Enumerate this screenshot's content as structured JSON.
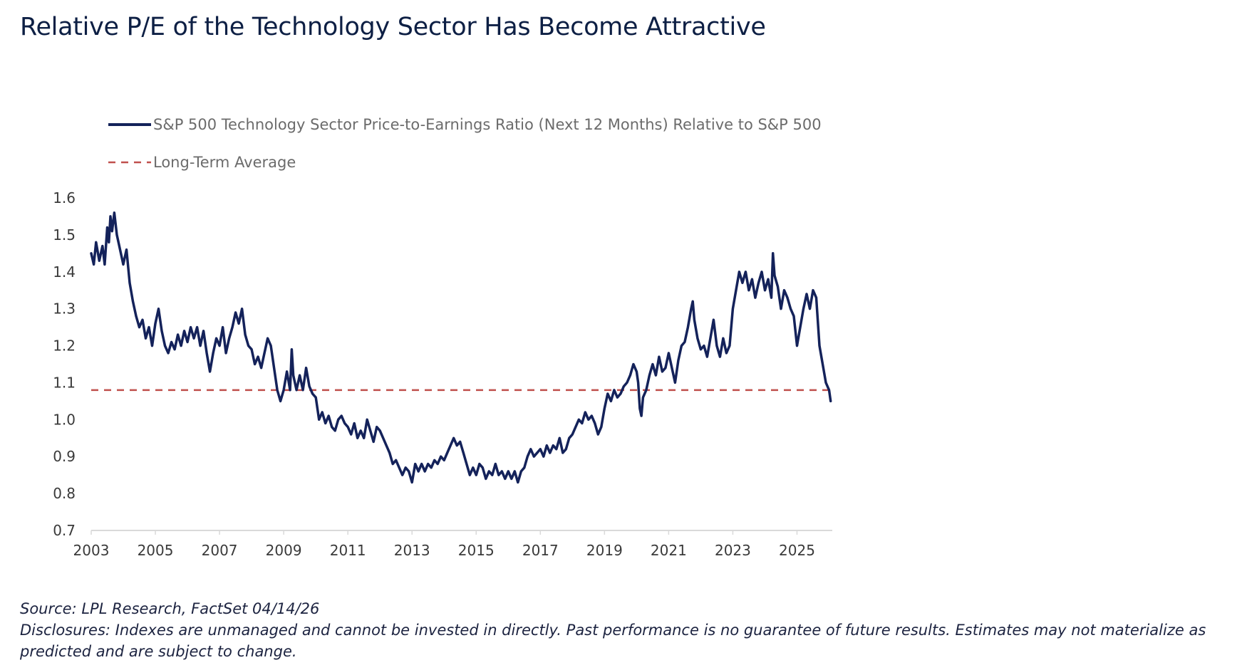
{
  "title": "Relative P/E of the Technology Sector Has Become Attractive",
  "source": "Source: LPL Research, FactSet 04/14/26",
  "disclosures": "Disclosures: Indexes are unmanaged and cannot be invested in directly. Past performance is no guarantee of future results. Estimates may not materialize as predicted and are subject to change.",
  "colors": {
    "series": "#14225a",
    "average": "#c0504d",
    "title": "#0d1f44",
    "axis": "#d9d9d9"
  },
  "chart_data": {
    "type": "line",
    "title": "Relative P/E of the Technology Sector Has Become Attractive",
    "xlabel": "",
    "ylabel": "",
    "xlim": [
      2003,
      2026.1
    ],
    "ylim": [
      0.7,
      1.6
    ],
    "x_ticks": [
      "2003",
      "2005",
      "2007",
      "2009",
      "2011",
      "2013",
      "2015",
      "2017",
      "2019",
      "2021",
      "2023",
      "2025"
    ],
    "y_ticks": [
      "1.6",
      "1.5",
      "1.4",
      "1.3",
      "1.2",
      "1.1",
      "1.0",
      "0.9",
      "0.8",
      "0.7"
    ],
    "grid": false,
    "legend_position": "top-left",
    "series": [
      {
        "name": "S&P 500 Technology Sector Price-to-Earnings Ratio (Next 12 Months) Relative to S&P 500",
        "style": "solid",
        "points": [
          [
            2003.0,
            1.45
          ],
          [
            2003.08,
            1.42
          ],
          [
            2003.15,
            1.48
          ],
          [
            2003.25,
            1.43
          ],
          [
            2003.35,
            1.47
          ],
          [
            2003.42,
            1.42
          ],
          [
            2003.5,
            1.52
          ],
          [
            2003.55,
            1.48
          ],
          [
            2003.6,
            1.55
          ],
          [
            2003.65,
            1.51
          ],
          [
            2003.72,
            1.56
          ],
          [
            2003.8,
            1.5
          ],
          [
            2003.9,
            1.46
          ],
          [
            2004.0,
            1.42
          ],
          [
            2004.1,
            1.46
          ],
          [
            2004.2,
            1.37
          ],
          [
            2004.3,
            1.32
          ],
          [
            2004.4,
            1.28
          ],
          [
            2004.5,
            1.25
          ],
          [
            2004.6,
            1.27
          ],
          [
            2004.7,
            1.22
          ],
          [
            2004.8,
            1.25
          ],
          [
            2004.9,
            1.2
          ],
          [
            2005.0,
            1.26
          ],
          [
            2005.1,
            1.3
          ],
          [
            2005.2,
            1.24
          ],
          [
            2005.3,
            1.2
          ],
          [
            2005.4,
            1.18
          ],
          [
            2005.5,
            1.21
          ],
          [
            2005.6,
            1.19
          ],
          [
            2005.7,
            1.23
          ],
          [
            2005.8,
            1.2
          ],
          [
            2005.9,
            1.24
          ],
          [
            2006.0,
            1.21
          ],
          [
            2006.1,
            1.25
          ],
          [
            2006.2,
            1.22
          ],
          [
            2006.3,
            1.25
          ],
          [
            2006.4,
            1.2
          ],
          [
            2006.5,
            1.24
          ],
          [
            2006.6,
            1.18
          ],
          [
            2006.7,
            1.13
          ],
          [
            2006.8,
            1.18
          ],
          [
            2006.9,
            1.22
          ],
          [
            2007.0,
            1.2
          ],
          [
            2007.1,
            1.25
          ],
          [
            2007.2,
            1.18
          ],
          [
            2007.3,
            1.22
          ],
          [
            2007.4,
            1.25
          ],
          [
            2007.5,
            1.29
          ],
          [
            2007.6,
            1.26
          ],
          [
            2007.7,
            1.3
          ],
          [
            2007.8,
            1.23
          ],
          [
            2007.9,
            1.2
          ],
          [
            2008.0,
            1.19
          ],
          [
            2008.1,
            1.15
          ],
          [
            2008.2,
            1.17
          ],
          [
            2008.3,
            1.14
          ],
          [
            2008.4,
            1.18
          ],
          [
            2008.5,
            1.22
          ],
          [
            2008.6,
            1.2
          ],
          [
            2008.7,
            1.14
          ],
          [
            2008.8,
            1.08
          ],
          [
            2008.9,
            1.05
          ],
          [
            2009.0,
            1.08
          ],
          [
            2009.1,
            1.13
          ],
          [
            2009.2,
            1.08
          ],
          [
            2009.25,
            1.19
          ],
          [
            2009.3,
            1.12
          ],
          [
            2009.4,
            1.08
          ],
          [
            2009.5,
            1.12
          ],
          [
            2009.6,
            1.08
          ],
          [
            2009.7,
            1.14
          ],
          [
            2009.8,
            1.09
          ],
          [
            2009.9,
            1.07
          ],
          [
            2010.0,
            1.06
          ],
          [
            2010.1,
            1.0
          ],
          [
            2010.2,
            1.02
          ],
          [
            2010.3,
            0.99
          ],
          [
            2010.4,
            1.01
          ],
          [
            2010.5,
            0.98
          ],
          [
            2010.6,
            0.97
          ],
          [
            2010.7,
            1.0
          ],
          [
            2010.8,
            1.01
          ],
          [
            2010.9,
            0.99
          ],
          [
            2011.0,
            0.98
          ],
          [
            2011.1,
            0.96
          ],
          [
            2011.2,
            0.99
          ],
          [
            2011.3,
            0.95
          ],
          [
            2011.4,
            0.97
          ],
          [
            2011.5,
            0.95
          ],
          [
            2011.6,
            1.0
          ],
          [
            2011.7,
            0.97
          ],
          [
            2011.8,
            0.94
          ],
          [
            2011.9,
            0.98
          ],
          [
            2012.0,
            0.97
          ],
          [
            2012.1,
            0.95
          ],
          [
            2012.2,
            0.93
          ],
          [
            2012.3,
            0.91
          ],
          [
            2012.4,
            0.88
          ],
          [
            2012.5,
            0.89
          ],
          [
            2012.6,
            0.87
          ],
          [
            2012.7,
            0.85
          ],
          [
            2012.8,
            0.87
          ],
          [
            2012.9,
            0.86
          ],
          [
            2013.0,
            0.83
          ],
          [
            2013.1,
            0.88
          ],
          [
            2013.2,
            0.86
          ],
          [
            2013.3,
            0.88
          ],
          [
            2013.4,
            0.86
          ],
          [
            2013.5,
            0.88
          ],
          [
            2013.6,
            0.87
          ],
          [
            2013.7,
            0.89
          ],
          [
            2013.8,
            0.88
          ],
          [
            2013.9,
            0.9
          ],
          [
            2014.0,
            0.89
          ],
          [
            2014.1,
            0.91
          ],
          [
            2014.2,
            0.93
          ],
          [
            2014.3,
            0.95
          ],
          [
            2014.4,
            0.93
          ],
          [
            2014.5,
            0.94
          ],
          [
            2014.6,
            0.91
          ],
          [
            2014.7,
            0.88
          ],
          [
            2014.8,
            0.85
          ],
          [
            2014.9,
            0.87
          ],
          [
            2015.0,
            0.85
          ],
          [
            2015.1,
            0.88
          ],
          [
            2015.2,
            0.87
          ],
          [
            2015.3,
            0.84
          ],
          [
            2015.4,
            0.86
          ],
          [
            2015.5,
            0.85
          ],
          [
            2015.6,
            0.88
          ],
          [
            2015.7,
            0.85
          ],
          [
            2015.8,
            0.86
          ],
          [
            2015.9,
            0.84
          ],
          [
            2016.0,
            0.86
          ],
          [
            2016.1,
            0.84
          ],
          [
            2016.2,
            0.86
          ],
          [
            2016.3,
            0.83
          ],
          [
            2016.4,
            0.86
          ],
          [
            2016.5,
            0.87
          ],
          [
            2016.6,
            0.9
          ],
          [
            2016.7,
            0.92
          ],
          [
            2016.8,
            0.9
          ],
          [
            2016.9,
            0.91
          ],
          [
            2017.0,
            0.92
          ],
          [
            2017.1,
            0.9
          ],
          [
            2017.2,
            0.93
          ],
          [
            2017.3,
            0.91
          ],
          [
            2017.4,
            0.93
          ],
          [
            2017.5,
            0.92
          ],
          [
            2017.6,
            0.95
          ],
          [
            2017.7,
            0.91
          ],
          [
            2017.8,
            0.92
          ],
          [
            2017.9,
            0.95
          ],
          [
            2018.0,
            0.96
          ],
          [
            2018.1,
            0.98
          ],
          [
            2018.2,
            1.0
          ],
          [
            2018.3,
            0.99
          ],
          [
            2018.4,
            1.02
          ],
          [
            2018.5,
            1.0
          ],
          [
            2018.6,
            1.01
          ],
          [
            2018.7,
            0.99
          ],
          [
            2018.8,
            0.96
          ],
          [
            2018.9,
            0.98
          ],
          [
            2019.0,
            1.03
          ],
          [
            2019.1,
            1.07
          ],
          [
            2019.2,
            1.05
          ],
          [
            2019.3,
            1.08
          ],
          [
            2019.4,
            1.06
          ],
          [
            2019.5,
            1.07
          ],
          [
            2019.6,
            1.09
          ],
          [
            2019.7,
            1.1
          ],
          [
            2019.8,
            1.12
          ],
          [
            2019.9,
            1.15
          ],
          [
            2020.0,
            1.13
          ],
          [
            2020.05,
            1.1
          ],
          [
            2020.1,
            1.03
          ],
          [
            2020.15,
            1.01
          ],
          [
            2020.2,
            1.06
          ],
          [
            2020.3,
            1.08
          ],
          [
            2020.4,
            1.12
          ],
          [
            2020.5,
            1.15
          ],
          [
            2020.6,
            1.12
          ],
          [
            2020.7,
            1.17
          ],
          [
            2020.8,
            1.13
          ],
          [
            2020.9,
            1.14
          ],
          [
            2021.0,
            1.18
          ],
          [
            2021.1,
            1.14
          ],
          [
            2021.2,
            1.1
          ],
          [
            2021.3,
            1.16
          ],
          [
            2021.4,
            1.2
          ],
          [
            2021.5,
            1.21
          ],
          [
            2021.6,
            1.25
          ],
          [
            2021.7,
            1.3
          ],
          [
            2021.75,
            1.32
          ],
          [
            2021.8,
            1.27
          ],
          [
            2021.9,
            1.22
          ],
          [
            2022.0,
            1.19
          ],
          [
            2022.1,
            1.2
          ],
          [
            2022.2,
            1.17
          ],
          [
            2022.3,
            1.22
          ],
          [
            2022.4,
            1.27
          ],
          [
            2022.5,
            1.2
          ],
          [
            2022.6,
            1.17
          ],
          [
            2022.7,
            1.22
          ],
          [
            2022.8,
            1.18
          ],
          [
            2022.9,
            1.2
          ],
          [
            2023.0,
            1.3
          ],
          [
            2023.1,
            1.35
          ],
          [
            2023.2,
            1.4
          ],
          [
            2023.3,
            1.37
          ],
          [
            2023.4,
            1.4
          ],
          [
            2023.5,
            1.35
          ],
          [
            2023.6,
            1.38
          ],
          [
            2023.7,
            1.33
          ],
          [
            2023.8,
            1.37
          ],
          [
            2023.9,
            1.4
          ],
          [
            2024.0,
            1.35
          ],
          [
            2024.1,
            1.38
          ],
          [
            2024.2,
            1.33
          ],
          [
            2024.25,
            1.45
          ],
          [
            2024.3,
            1.39
          ],
          [
            2024.4,
            1.36
          ],
          [
            2024.5,
            1.3
          ],
          [
            2024.6,
            1.35
          ],
          [
            2024.7,
            1.33
          ],
          [
            2024.8,
            1.3
          ],
          [
            2024.9,
            1.28
          ],
          [
            2025.0,
            1.2
          ],
          [
            2025.1,
            1.25
          ],
          [
            2025.2,
            1.3
          ],
          [
            2025.3,
            1.34
          ],
          [
            2025.4,
            1.3
          ],
          [
            2025.5,
            1.35
          ],
          [
            2025.6,
            1.33
          ],
          [
            2025.7,
            1.2
          ],
          [
            2025.8,
            1.15
          ],
          [
            2025.9,
            1.1
          ],
          [
            2026.0,
            1.08
          ],
          [
            2026.05,
            1.05
          ]
        ]
      },
      {
        "name": "Long-Term Average",
        "style": "dashed",
        "value": 1.08
      }
    ]
  }
}
